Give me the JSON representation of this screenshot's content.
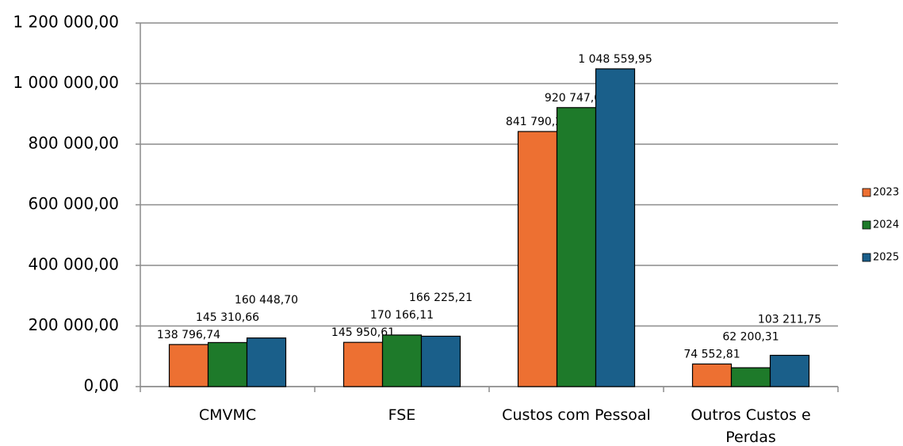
{
  "chart_data": {
    "type": "bar",
    "categories": [
      "CMVMC",
      "FSE",
      "Custos com Pessoal",
      "Outros Custos e Perdas"
    ],
    "series": [
      {
        "name": "2023",
        "color": "#ed7032",
        "values": [
          138796.74,
          145950.61,
          841790.27,
          74552.81
        ],
        "value_labels": [
          "138 796,74",
          "145 950,61",
          "841 790,27",
          "74 552,81"
        ]
      },
      {
        "name": "2024",
        "color": "#1e7a2a",
        "values": [
          145310.66,
          170166.11,
          920747.05,
          62200.31
        ],
        "value_labels": [
          "145 310,66",
          "170 166,11",
          "920 747,05",
          "62 200,31"
        ]
      },
      {
        "name": "2025",
        "color": "#1a5f8a",
        "values": [
          160448.7,
          166225.21,
          1048559.95,
          103211.75
        ],
        "value_labels": [
          "160 448,70",
          "166 225,21",
          "1 048 559,95",
          "103 211,75"
        ]
      }
    ],
    "ylim": [
      0,
      1200000
    ],
    "yticks": [
      {
        "value": 0,
        "label": "0,00"
      },
      {
        "value": 200000,
        "label": "200 000,00"
      },
      {
        "value": 400000,
        "label": "400 000,00"
      },
      {
        "value": 600000,
        "label": "600 000,00"
      },
      {
        "value": 800000,
        "label": "800 000,00"
      },
      {
        "value": 1000000,
        "label": "1 000 000,00"
      },
      {
        "value": 1200000,
        "label": "1 200 000,00"
      }
    ],
    "grid": true,
    "legend": "right"
  }
}
